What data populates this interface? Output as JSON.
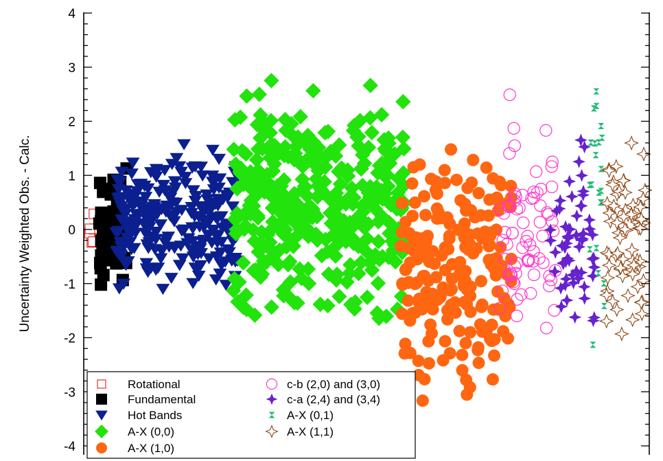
{
  "chart_data": {
    "type": "scatter",
    "ylabel": "Uncertainty Weighted Obs. - Calc.",
    "xlabel": "",
    "ylim": [
      -4,
      4
    ],
    "yticks": [
      "4",
      "3",
      "2",
      "1",
      "0",
      "-1",
      "-2",
      "-3",
      "-4"
    ],
    "ytick_values": [
      4,
      3,
      2,
      1,
      0,
      -1,
      -2,
      -3,
      -4
    ],
    "legend_position": "bottom-left",
    "series": [
      {
        "name": "Rotational",
        "marker": "square-open",
        "color": "#e8312a",
        "x_range": [
          0.0,
          0.03
        ],
        "count": 8,
        "y_range": [
          -0.45,
          0.45
        ],
        "seed": 11
      },
      {
        "name": "Fundamental",
        "marker": "square",
        "color": "#000000",
        "x_range": [
          0.02,
          0.07
        ],
        "count": 55,
        "y_range": [
          -1.5,
          1.55
        ],
        "seed": 23
      },
      {
        "name": "Hot Bands",
        "marker": "triangle-down",
        "color": "#0b1f8f",
        "x_range": [
          0.05,
          0.27
        ],
        "count": 260,
        "y_range": [
          -1.5,
          1.7
        ],
        "seed": 37
      },
      {
        "name": "A-X (0,0)",
        "marker": "diamond",
        "color": "#22e30c",
        "x_range": [
          0.26,
          0.57
        ],
        "count": 380,
        "y_range": [
          -2.2,
          3.0
        ],
        "seed": 41
      },
      {
        "name": "A-X (1,0)",
        "marker": "circle",
        "color": "#ff6611",
        "x_range": [
          0.56,
          0.76
        ],
        "count": 210,
        "y_range": [
          -3.8,
          2.5
        ],
        "seed": 53
      },
      {
        "name": "c-b (2,0) and (3,0)",
        "marker": "circle-open",
        "color": "#ff33cc",
        "x_range": [
          0.74,
          0.84
        ],
        "count": 70,
        "y_range": [
          -3.0,
          2.8
        ],
        "seed": 67
      },
      {
        "name": "c-a (2,4) and (3,4)",
        "marker": "star4",
        "color": "#6622cc",
        "x_range": [
          0.83,
          0.91
        ],
        "count": 60,
        "y_range": [
          -2.4,
          1.95
        ],
        "seed": 71
      },
      {
        "name": "A-X (0,1)",
        "marker": "bowtie",
        "color": "#22bb77",
        "x_range": [
          0.9,
          0.93
        ],
        "count": 22,
        "y_range": [
          -2.45,
          3.95
        ],
        "seed": 83
      },
      {
        "name": "A-X (1,1)",
        "marker": "star4-open",
        "color": "#8b4513",
        "x_range": [
          0.93,
          1.0
        ],
        "count": 70,
        "y_range": [
          -2.3,
          2.0
        ],
        "seed": 97
      }
    ]
  }
}
